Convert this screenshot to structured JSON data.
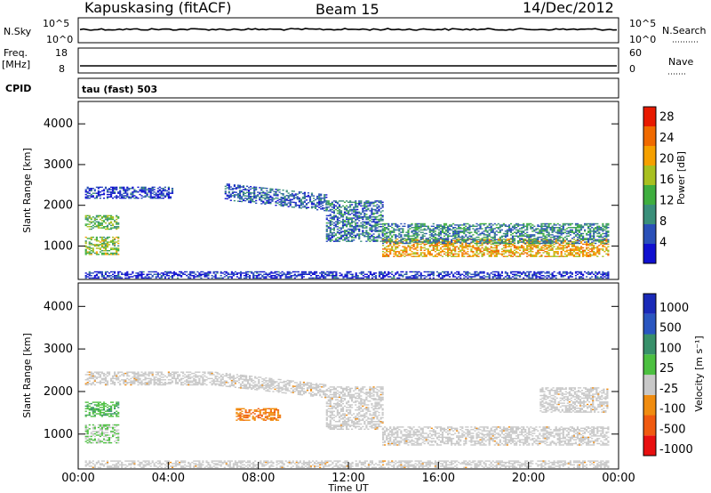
{
  "header": {
    "station": "Kapuskasing (fitACF)",
    "beam": "Beam 15",
    "date": "14/Dec/2012"
  },
  "strip_panels": {
    "nsky": {
      "label": "N.Sky",
      "left_ticks": [
        "10^5",
        "10^0"
      ],
      "right_ticks": [
        "10^5",
        "10^0"
      ],
      "right_label": "N.Search"
    },
    "freq": {
      "label_line1": "Freq.",
      "label_line2": "[MHz]",
      "left_ticks": [
        "18",
        "8"
      ],
      "right_ticks": [
        "60",
        "0"
      ],
      "right_label": "Nave"
    },
    "cpid": {
      "label": "CPID",
      "text": "tau (fast) 503"
    }
  },
  "colors": {
    "power_scale": [
      "#1010d0",
      "#2a50b8",
      "#3a8f7a",
      "#3fae3f",
      "#a8c020",
      "#f5a000",
      "#f06a00",
      "#e81a00"
    ],
    "velocity_scale": [
      "#1a2ab8",
      "#2a56c0",
      "#38906a",
      "#4cc040",
      "#c8c8c8",
      "#f08c10",
      "#f05a10",
      "#e81010"
    ],
    "velocity_grey": "#c8c8c8"
  },
  "chart_data": [
    {
      "type": "heatmap",
      "name": "power",
      "xlabel": "",
      "ylabel": "Slant Range [km]",
      "x_ticks": [
        "00:00",
        "04:00",
        "08:00",
        "12:00",
        "16:00",
        "20:00",
        "00:00"
      ],
      "y_ticks": [
        "1000",
        "2000",
        "3000",
        "4000"
      ],
      "xlim_hours": [
        0,
        24
      ],
      "ylim_km": [
        180,
        4550
      ],
      "colorbar": {
        "label": "Power [dB]",
        "ticks": [
          "4",
          "8",
          "12",
          "16",
          "20",
          "24",
          "28"
        ],
        "range": [
          0,
          30
        ]
      },
      "bands": [
        {
          "t0": 0.3,
          "t1": 4.2,
          "r_center": 2300,
          "r_width": 140,
          "level": 0.12
        },
        {
          "t0": 0.3,
          "t1": 1.8,
          "r_center": 1580,
          "r_width": 180,
          "level": 0.45
        },
        {
          "t0": 0.3,
          "t1": 1.8,
          "r_center": 1000,
          "r_width": 220,
          "level": 0.5
        },
        {
          "t0": 6.5,
          "t1": 11.0,
          "r_center": 2350,
          "r_width": 200,
          "level": 0.2
        },
        {
          "t0": 11.0,
          "t1": 13.5,
          "r_center": 1600,
          "r_width": 500,
          "level": 0.25
        },
        {
          "t0": 13.5,
          "t1": 23.5,
          "r_center": 950,
          "r_width": 220,
          "level": 0.7
        },
        {
          "t0": 13.5,
          "t1": 23.5,
          "r_center": 1300,
          "r_width": 250,
          "level": 0.3
        },
        {
          "t0": 0.3,
          "t1": 23.5,
          "r_center": 280,
          "r_width": 80,
          "level": 0.1
        }
      ]
    },
    {
      "type": "heatmap",
      "name": "velocity",
      "xlabel": "Time UT",
      "ylabel": "Slant Range [km]",
      "x_ticks": [
        "00:00",
        "04:00",
        "08:00",
        "12:00",
        "16:00",
        "20:00",
        "00:00"
      ],
      "y_ticks": [
        "1000",
        "2000",
        "3000",
        "4000"
      ],
      "xlim_hours": [
        0,
        24
      ],
      "ylim_km": [
        180,
        4550
      ],
      "colorbar": {
        "label": "Velocity [m s⁻¹]",
        "ticks": [
          "1000",
          "500",
          "100",
          "25",
          "-25",
          "-100",
          "-500",
          "-1000"
        ]
      },
      "bands": [
        {
          "t0": 0.3,
          "t1": 11.0,
          "r_center": 2300,
          "r_width": 160,
          "class": "grey"
        },
        {
          "t0": 0.3,
          "t1": 1.8,
          "r_center": 1580,
          "r_width": 180,
          "class": "green"
        },
        {
          "t0": 0.3,
          "t1": 1.8,
          "r_center": 1000,
          "r_width": 220,
          "class": "greygreen"
        },
        {
          "t0": 7.0,
          "t1": 9.0,
          "r_center": 1450,
          "r_width": 140,
          "class": "orange"
        },
        {
          "t0": 11.0,
          "t1": 13.5,
          "r_center": 1600,
          "r_width": 500,
          "class": "grey"
        },
        {
          "t0": 13.5,
          "t1": 23.5,
          "r_center": 950,
          "r_width": 220,
          "class": "grey"
        },
        {
          "t0": 20.5,
          "t1": 23.5,
          "r_center": 1800,
          "r_width": 300,
          "class": "grey"
        },
        {
          "t0": 0.3,
          "t1": 23.5,
          "r_center": 280,
          "r_width": 80,
          "class": "grey"
        }
      ]
    }
  ]
}
